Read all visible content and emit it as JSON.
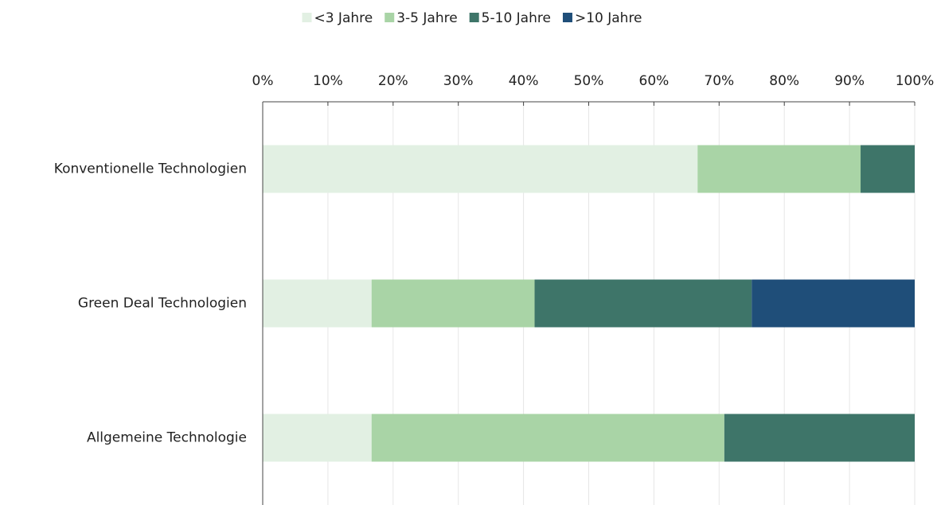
{
  "chart_data": {
    "type": "stacked_barh",
    "categories": [
      "Konventionelle Technologien",
      "Green Deal Technologien",
      "Allgemeine Technologie"
    ],
    "series": [
      {
        "name": "<3 Jahre",
        "color": "#e2f0e3",
        "values": [
          66.7,
          16.7,
          16.7
        ]
      },
      {
        "name": "3-5 Jahre",
        "color": "#a9d4a6",
        "values": [
          25,
          25,
          54.1
        ]
      },
      {
        "name": "5-10 Jahre",
        "color": "#3e7569",
        "values": [
          8.3,
          33.3,
          29.2
        ]
      },
      {
        "name": ">10 Jahre",
        "color": "#1f4e79",
        "values": [
          0,
          25,
          0
        ]
      }
    ],
    "xlim": [
      0,
      100
    ],
    "xticks": [
      {
        "value": 0,
        "label": "0%"
      },
      {
        "value": 10,
        "label": "10%"
      },
      {
        "value": 20,
        "label": "20%"
      },
      {
        "value": 30,
        "label": "30%"
      },
      {
        "value": 40,
        "label": "40%"
      },
      {
        "value": 50,
        "label": "50%"
      },
      {
        "value": 60,
        "label": "60%"
      },
      {
        "value": 70,
        "label": "70%"
      },
      {
        "value": 80,
        "label": "80%"
      },
      {
        "value": 90,
        "label": "90%"
      },
      {
        "value": 100,
        "label": "100%"
      }
    ],
    "grid": true,
    "legend": "top"
  }
}
